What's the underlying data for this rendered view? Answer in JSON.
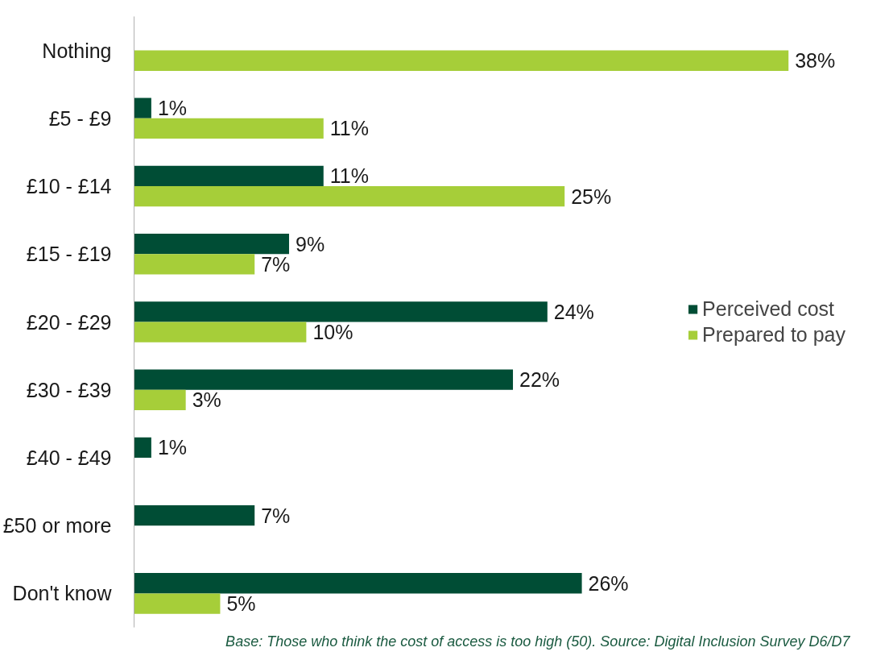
{
  "chart_data": {
    "type": "bar",
    "orientation": "horizontal",
    "categories": [
      "Nothing",
      "£5 - £9",
      "£10 - £14",
      "£15 - £19",
      "£20 - £29",
      "£30 - £39",
      "£40 - £49",
      "£50 or more",
      "Don't know"
    ],
    "series": [
      {
        "name": "Perceived cost",
        "color": "#004d35",
        "values": [
          null,
          1,
          11,
          9,
          24,
          22,
          1,
          7,
          26
        ],
        "value_labels": [
          null,
          "1%",
          "11%",
          "9%",
          "24%",
          "22%",
          "1%",
          "7%",
          "26%"
        ]
      },
      {
        "name": "Prepared to pay",
        "color": "#a6ce39",
        "values": [
          38,
          11,
          25,
          7,
          10,
          3,
          null,
          null,
          5
        ],
        "value_labels": [
          "38%",
          "11%",
          "25%",
          "7%",
          "10%",
          "3%",
          null,
          null,
          "5%"
        ]
      }
    ],
    "legend": "right",
    "grid": false,
    "annotations": [
      "Base: Those who think the cost of access is  too high (50). Source: Digital Inclusion Survey D6/D7"
    ]
  }
}
